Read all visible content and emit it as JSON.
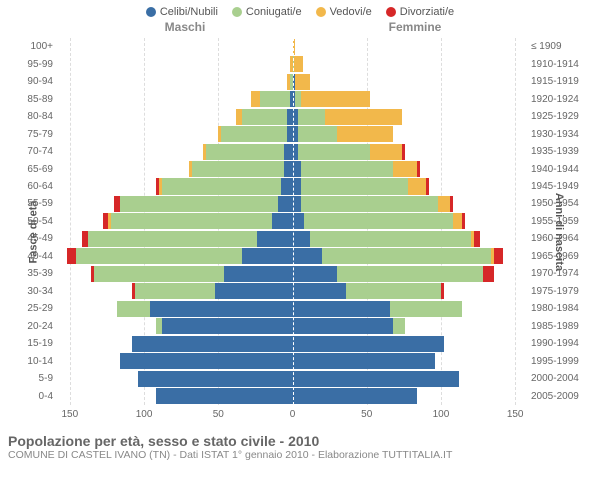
{
  "legend": [
    {
      "label": "Celibi/Nubili",
      "color": "#3a6ea5"
    },
    {
      "label": "Coniugati/e",
      "color": "#a9cf8f"
    },
    {
      "label": "Vedovi/e",
      "color": "#f2b84b"
    },
    {
      "label": "Divorziati/e",
      "color": "#d62728"
    }
  ],
  "gender": {
    "left": "Maschi",
    "right": "Femmine"
  },
  "axis_titles": {
    "left": "Fasce di età",
    "right": "Anni di nascita"
  },
  "colors": {
    "grid": "#e0e0e0",
    "background": "#ffffff"
  },
  "x": {
    "max": 160,
    "ticks": [
      150,
      100,
      50,
      0,
      50,
      100,
      150
    ],
    "tick_labels": [
      "150",
      "100",
      "50",
      "0",
      "50",
      "100",
      "150"
    ]
  },
  "rows": [
    {
      "age": "100+",
      "birth": "≤ 1909",
      "m": [
        0,
        0,
        0,
        0
      ],
      "f": [
        0,
        0,
        2,
        0
      ]
    },
    {
      "age": "95-99",
      "birth": "1910-1914",
      "m": [
        0,
        0,
        2,
        0
      ],
      "f": [
        0,
        1,
        6,
        0
      ]
    },
    {
      "age": "90-94",
      "birth": "1915-1919",
      "m": [
        0,
        2,
        2,
        0
      ],
      "f": [
        2,
        0,
        10,
        0
      ]
    },
    {
      "age": "85-89",
      "birth": "1920-1924",
      "m": [
        2,
        20,
        6,
        0
      ],
      "f": [
        2,
        4,
        46,
        0
      ]
    },
    {
      "age": "80-84",
      "birth": "1925-1929",
      "m": [
        4,
        30,
        4,
        0
      ],
      "f": [
        4,
        18,
        52,
        0
      ]
    },
    {
      "age": "75-79",
      "birth": "1930-1934",
      "m": [
        4,
        44,
        2,
        0
      ],
      "f": [
        4,
        26,
        38,
        0
      ]
    },
    {
      "age": "70-74",
      "birth": "1935-1939",
      "m": [
        6,
        52,
        2,
        0
      ],
      "f": [
        4,
        48,
        22,
        2
      ]
    },
    {
      "age": "65-69",
      "birth": "1940-1944",
      "m": [
        6,
        62,
        2,
        0
      ],
      "f": [
        6,
        62,
        16,
        2
      ]
    },
    {
      "age": "60-64",
      "birth": "1945-1949",
      "m": [
        8,
        80,
        2,
        2
      ],
      "f": [
        6,
        72,
        12,
        2
      ]
    },
    {
      "age": "55-59",
      "birth": "1950-1954",
      "m": [
        10,
        106,
        0,
        4
      ],
      "f": [
        6,
        92,
        8,
        2
      ]
    },
    {
      "age": "50-54",
      "birth": "1955-1959",
      "m": [
        14,
        108,
        2,
        4
      ],
      "f": [
        8,
        100,
        6,
        2
      ]
    },
    {
      "age": "45-49",
      "birth": "1960-1964",
      "m": [
        24,
        114,
        0,
        4
      ],
      "f": [
        12,
        108,
        2,
        4
      ]
    },
    {
      "age": "40-44",
      "birth": "1965-1969",
      "m": [
        34,
        112,
        0,
        6
      ],
      "f": [
        20,
        114,
        2,
        6
      ]
    },
    {
      "age": "35-39",
      "birth": "1970-1974",
      "m": [
        46,
        88,
        0,
        2
      ],
      "f": [
        30,
        98,
        0,
        8
      ]
    },
    {
      "age": "30-34",
      "birth": "1975-1979",
      "m": [
        52,
        54,
        0,
        2
      ],
      "f": [
        36,
        64,
        0,
        2
      ]
    },
    {
      "age": "25-29",
      "birth": "1980-1984",
      "m": [
        96,
        22,
        0,
        0
      ],
      "f": [
        66,
        48,
        0,
        0
      ]
    },
    {
      "age": "20-24",
      "birth": "1985-1989",
      "m": [
        88,
        4,
        0,
        0
      ],
      "f": [
        68,
        8,
        0,
        0
      ]
    },
    {
      "age": "15-19",
      "birth": "1990-1994",
      "m": [
        108,
        0,
        0,
        0
      ],
      "f": [
        102,
        0,
        0,
        0
      ]
    },
    {
      "age": "10-14",
      "birth": "1995-1999",
      "m": [
        116,
        0,
        0,
        0
      ],
      "f": [
        96,
        0,
        0,
        0
      ]
    },
    {
      "age": "5-9",
      "birth": "2000-2004",
      "m": [
        104,
        0,
        0,
        0
      ],
      "f": [
        112,
        0,
        0,
        0
      ]
    },
    {
      "age": "0-4",
      "birth": "2005-2009",
      "m": [
        92,
        0,
        0,
        0
      ],
      "f": [
        84,
        0,
        0,
        0
      ]
    }
  ],
  "footer": {
    "title": "Popolazione per età, sesso e stato civile - 2010",
    "subtitle": "COMUNE DI CASTEL IVANO (TN) - Dati ISTAT 1° gennaio 2010 - Elaborazione TUTTITALIA.IT"
  }
}
